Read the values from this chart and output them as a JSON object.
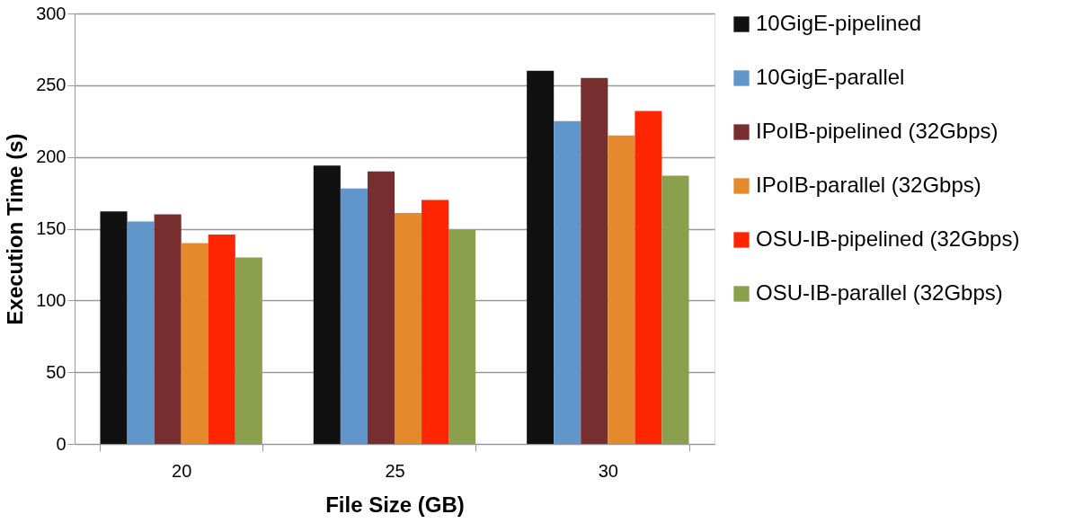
{
  "chart_data": {
    "type": "bar",
    "xlabel": "File Size (GB)",
    "ylabel": "Execution Time (s)",
    "categories": [
      "20",
      "25",
      "30"
    ],
    "series": [
      {
        "name": "10GigE-pipelined",
        "color": "#111111",
        "values": [
          162,
          194,
          260
        ]
      },
      {
        "name": "10GigE-parallel",
        "color": "#6096c9",
        "values": [
          155,
          178,
          225
        ]
      },
      {
        "name": "IPoIB-pipelined (32Gbps)",
        "color": "#772e2e",
        "values": [
          160,
          190,
          255
        ]
      },
      {
        "name": "IPoIB-parallel (32Gbps)",
        "color": "#e58a2c",
        "values": [
          140,
          161,
          215
        ]
      },
      {
        "name": "OSU-IB-pipelined (32Gbps)",
        "color": "#fe2600",
        "values": [
          146,
          170,
          232
        ]
      },
      {
        "name": "OSU-IB-parallel (32Gbps)",
        "color": "#8ba04c",
        "values": [
          130,
          149,
          187
        ]
      }
    ],
    "ylim": [
      0,
      300
    ],
    "yticks": [
      0,
      50,
      100,
      150,
      200,
      250,
      300
    ],
    "grid": "y",
    "legend": "right"
  }
}
